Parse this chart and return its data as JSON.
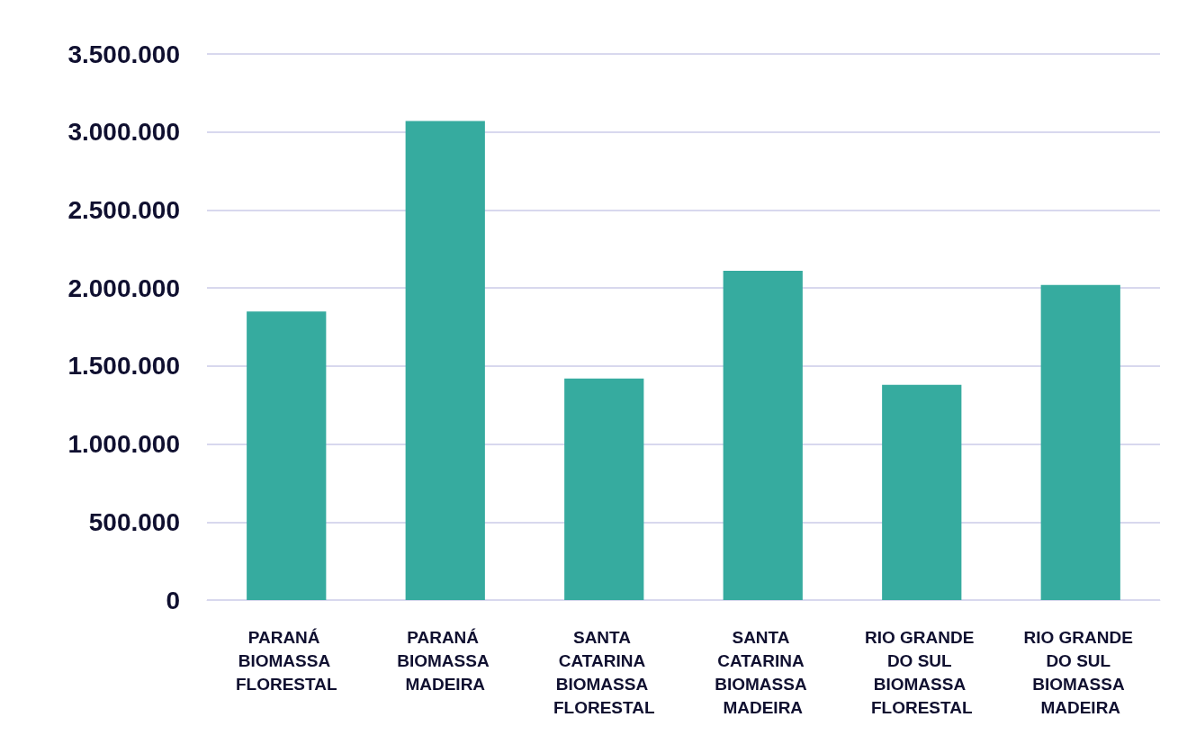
{
  "chart_data": {
    "type": "bar",
    "categories": [
      "PARANÁ BIOMASSA FLORESTAL",
      "PARANÁ BIOMASSA MADEIRA",
      "SANTA CATARINA BIOMASSA FLORESTAL",
      "SANTA CATARINA BIOMASSA MADEIRA",
      "RIO GRANDE DO SUL BIOMASSA FLORESTAL",
      "RIO GRANDE DO SUL BIOMASSA MADEIRA"
    ],
    "values": [
      1850000,
      3070000,
      1420000,
      2110000,
      1380000,
      2020000
    ],
    "color": "#36ab9f",
    "ylim": [
      0,
      3500000
    ],
    "yticks": [
      {
        "value": 0,
        "label": "0"
      },
      {
        "value": 500000,
        "label": "500.000"
      },
      {
        "value": 1000000,
        "label": "1.000.000"
      },
      {
        "value": 1500000,
        "label": "1.500.000"
      },
      {
        "value": 2000000,
        "label": "2.000.000"
      },
      {
        "value": 2500000,
        "label": "2.500.000"
      },
      {
        "value": 3000000,
        "label": "3.000.000"
      },
      {
        "value": 3500000,
        "label": "3.500.000"
      }
    ],
    "grid": "y"
  }
}
